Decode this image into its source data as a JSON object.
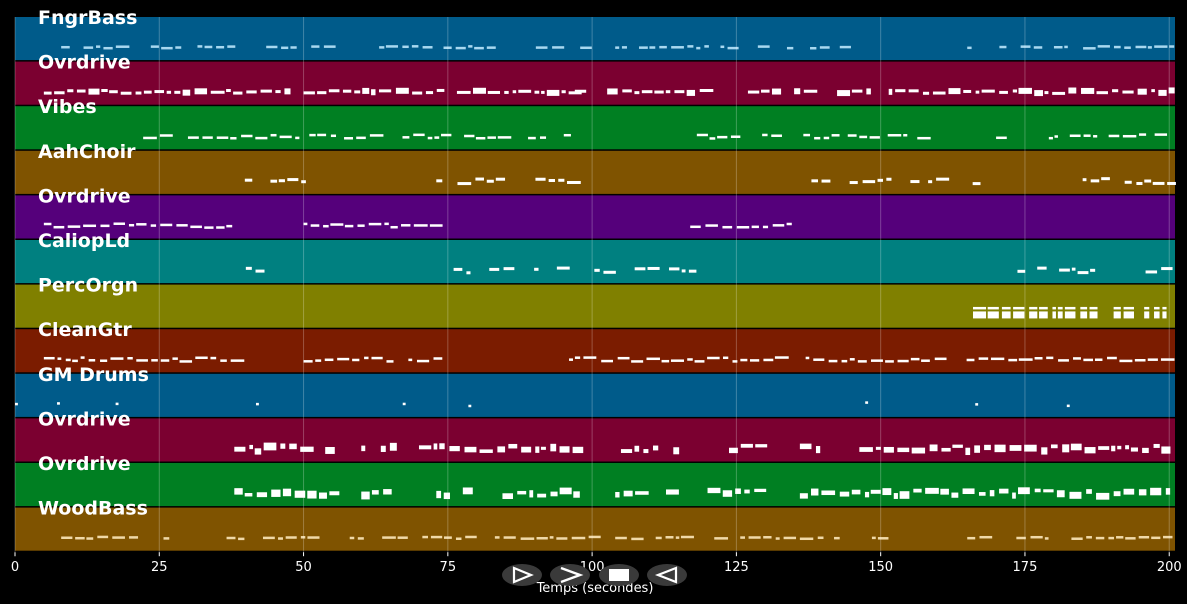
{
  "xlabel": "Temps (secondes)",
  "xlim": [
    0,
    201
  ],
  "xticks": [
    0,
    25,
    50,
    75,
    100,
    125,
    150,
    175,
    200
  ],
  "tracks": [
    {
      "name": "FngrBass",
      "color": "#005b8a",
      "note": "#a8d8f0",
      "pattern": "bass",
      "segments": [
        [
          8,
          55
        ],
        [
          58,
          100
        ],
        [
          104,
          145
        ],
        [
          165,
          200
        ]
      ],
      "density": 0.65
    },
    {
      "name": "Ovrdrive",
      "color": "#7b0030",
      "note": "#ffffff",
      "pattern": "solid",
      "segments": [
        [
          5,
          50
        ],
        [
          50,
          97
        ],
        [
          97,
          123
        ],
        [
          127,
          133
        ],
        [
          135,
          200
        ]
      ],
      "density": 0.95
    },
    {
      "name": "Vibes",
      "color": "#007f22",
      "note": "#ffffff",
      "pattern": "pulse",
      "segments": [
        [
          16,
          49
        ],
        [
          51,
          96
        ],
        [
          116,
          158
        ],
        [
          170,
          200
        ]
      ],
      "density": 0.75
    },
    {
      "name": "AahChoir",
      "color": "#7f5300",
      "note": "#ffffff",
      "pattern": "cluster",
      "segments": [
        [
          37,
          50
        ],
        [
          73,
          96
        ],
        [
          138,
          167
        ],
        [
          185,
          200
        ]
      ],
      "density": 0.7
    },
    {
      "name": "Ovrdrive",
      "color": "#55007b",
      "note": "#ffffff",
      "pattern": "dense",
      "segments": [
        [
          5,
          38
        ],
        [
          50,
          74
        ],
        [
          117,
          134
        ]
      ],
      "density": 0.95
    },
    {
      "name": "CaliopLd",
      "color": "#008080",
      "note": "#ffffff",
      "pattern": "sparse",
      "segments": [
        [
          40,
          48
        ],
        [
          76,
          97
        ],
        [
          98,
          118
        ],
        [
          155,
          156
        ],
        [
          172,
          200
        ]
      ],
      "density": 0.5
    },
    {
      "name": "PercOrgn",
      "color": "#808000",
      "note": "#ffffff",
      "pattern": "chord",
      "segments": [
        [
          166,
          200
        ]
      ],
      "density": 0.9
    },
    {
      "name": "CleanGtr",
      "color": "#7b1c00",
      "note": "#ffffff",
      "pattern": "dense",
      "segments": [
        [
          5,
          38
        ],
        [
          50,
          73
        ],
        [
          96,
          133
        ],
        [
          137,
          200
        ]
      ],
      "density": 0.95
    },
    {
      "name": "GM Drums",
      "color": "#005b8a",
      "note": "#ffffff",
      "pattern": "drums",
      "segments": [
        [
          0,
          200
        ]
      ],
      "density": 0.4
    },
    {
      "name": "Ovrdrive",
      "color": "#7b0030",
      "note": "#ffffff",
      "pattern": "thick",
      "segments": [
        [
          38,
          55
        ],
        [
          60,
          65
        ],
        [
          70,
          98
        ],
        [
          105,
          115
        ],
        [
          121,
          130
        ],
        [
          136,
          200
        ]
      ],
      "density": 0.9
    },
    {
      "name": "Ovrdrive",
      "color": "#007f22",
      "note": "#ffffff",
      "pattern": "thick",
      "segments": [
        [
          38,
          55
        ],
        [
          60,
          65
        ],
        [
          69,
          98
        ],
        [
          104,
          113
        ],
        [
          120,
          130
        ],
        [
          136,
          200
        ]
      ],
      "density": 0.9
    },
    {
      "name": "WoodBass",
      "color": "#7f5300",
      "note": "#f0d9a8",
      "pattern": "bass",
      "segments": [
        [
          8,
          55
        ],
        [
          58,
          100
        ],
        [
          104,
          150
        ],
        [
          165,
          200
        ]
      ],
      "density": 0.65
    }
  ],
  "controls": {
    "play": "play-icon",
    "forward": "forward-icon",
    "stop": "stop-icon",
    "back": "back-icon"
  }
}
